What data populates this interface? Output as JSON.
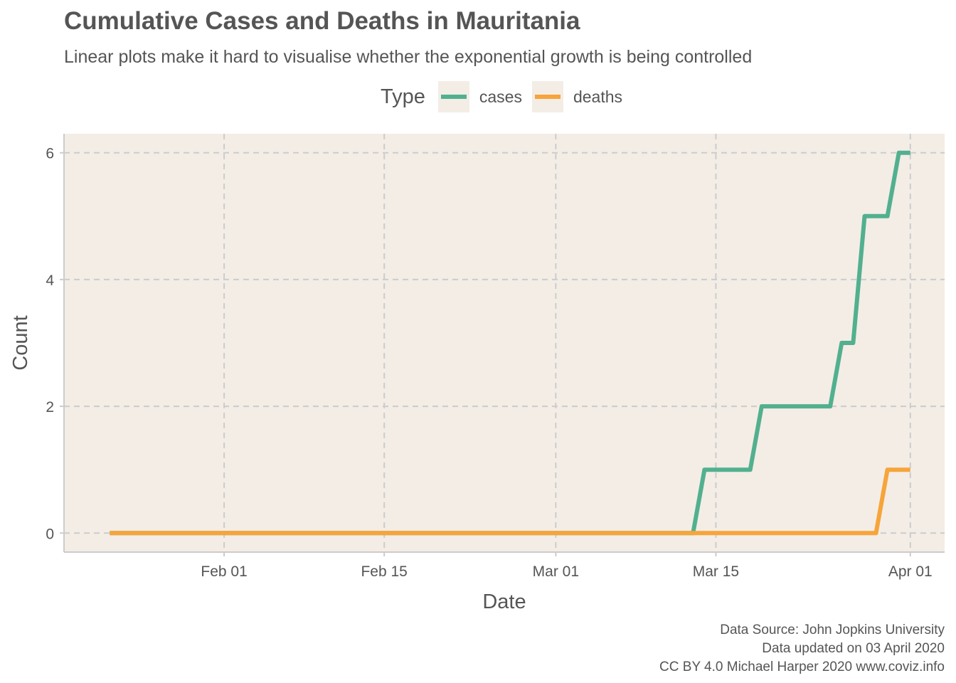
{
  "title": "Cumulative Cases and Deaths in Mauritania",
  "subtitle": "Linear plots make it hard to visualise whether the exponential growth is being controlled",
  "legend": {
    "title": "Type",
    "items": [
      {
        "label": "cases",
        "color": "#52b08f"
      },
      {
        "label": "deaths",
        "color": "#f7a43a"
      }
    ]
  },
  "caption": {
    "line1": "Data Source: John Jopkins University",
    "line2": "Data updated on 03 April 2020",
    "line3": "CC BY 4.0 Michael Harper 2020 www.coviz.info"
  },
  "chart_data": {
    "type": "line",
    "title": "Cumulative Cases and Deaths in Mauritania",
    "subtitle": "Linear plots make it hard to visualise whether the exponential growth is being controlled",
    "xlabel": "Date",
    "ylabel": "Count",
    "x_range": [
      "2020-01-18",
      "2020-04-04"
    ],
    "ylim": [
      -0.3,
      6.3
    ],
    "x_ticks": [
      {
        "date": "2020-02-01",
        "label": "Feb 01"
      },
      {
        "date": "2020-02-15",
        "label": "Feb 15"
      },
      {
        "date": "2020-03-01",
        "label": "Mar 01"
      },
      {
        "date": "2020-03-15",
        "label": "Mar 15"
      },
      {
        "date": "2020-04-01",
        "label": "Apr 01"
      }
    ],
    "y_ticks": [
      0,
      2,
      4,
      6
    ],
    "grid": true,
    "background": "#f3ede6",
    "legend_position": "top",
    "series": [
      {
        "name": "cases",
        "color": "#52b08f",
        "points": [
          [
            "2020-01-22",
            0
          ],
          [
            "2020-03-13",
            0
          ],
          [
            "2020-03-14",
            1
          ],
          [
            "2020-03-18",
            1
          ],
          [
            "2020-03-19",
            2
          ],
          [
            "2020-03-25",
            2
          ],
          [
            "2020-03-26",
            3
          ],
          [
            "2020-03-27",
            3
          ],
          [
            "2020-03-28",
            5
          ],
          [
            "2020-03-30",
            5
          ],
          [
            "2020-03-31",
            6
          ],
          [
            "2020-04-01",
            6
          ]
        ]
      },
      {
        "name": "deaths",
        "color": "#f7a43a",
        "points": [
          [
            "2020-01-22",
            0
          ],
          [
            "2020-03-29",
            0
          ],
          [
            "2020-03-30",
            1
          ],
          [
            "2020-04-01",
            1
          ]
        ]
      }
    ]
  }
}
